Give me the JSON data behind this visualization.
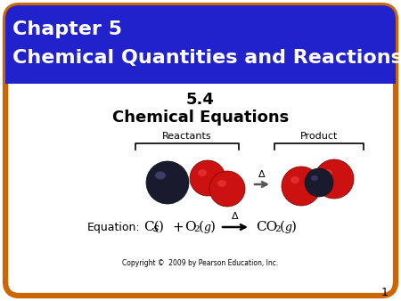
{
  "title_line1": "Chapter 5",
  "title_line2": "Chemical Quantities and Reactions",
  "subtitle_line1": "5.4",
  "subtitle_line2": "Chemical Equations",
  "reactants_label": "Reactants",
  "product_label": "Product",
  "copyright": "Copyright ©  2009 by Pearson Education, Inc.",
  "page_number": "1",
  "header_bg": "#2222cc",
  "header_text_color": "#ffffff",
  "border_color": "#cc6600",
  "body_bg": "#ffffff",
  "carbon_color": "#1a1a2e",
  "oxygen_color": "#cc1111",
  "slide_bg": "#ffffff",
  "fig_w": 4.5,
  "fig_h": 3.38,
  "dpi": 100
}
